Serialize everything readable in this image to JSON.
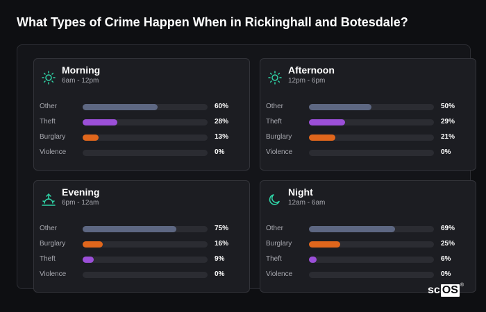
{
  "title": "What Types of Crime Happen When in Rickinghall and Botesdale?",
  "colors": {
    "accent_icon": "#2fd3a6",
    "other": "#5d6782",
    "theft": "#9b4fd8",
    "burglary": "#e0661c",
    "violence": "#2b2c32"
  },
  "cards": [
    {
      "name": "Morning",
      "range": "6am - 12pm",
      "icon": "sun-icon",
      "rows": [
        {
          "label": "Other",
          "value": 60,
          "pct": "60%",
          "color": "#5d6782"
        },
        {
          "label": "Theft",
          "value": 28,
          "pct": "28%",
          "color": "#9b4fd8"
        },
        {
          "label": "Burglary",
          "value": 13,
          "pct": "13%",
          "color": "#e0661c"
        },
        {
          "label": "Violence",
          "value": 0,
          "pct": "0%",
          "color": "#2b2c32"
        }
      ]
    },
    {
      "name": "Afternoon",
      "range": "12pm - 6pm",
      "icon": "sun-icon",
      "rows": [
        {
          "label": "Other",
          "value": 50,
          "pct": "50%",
          "color": "#5d6782"
        },
        {
          "label": "Theft",
          "value": 29,
          "pct": "29%",
          "color": "#9b4fd8"
        },
        {
          "label": "Burglary",
          "value": 21,
          "pct": "21%",
          "color": "#e0661c"
        },
        {
          "label": "Violence",
          "value": 0,
          "pct": "0%",
          "color": "#2b2c32"
        }
      ]
    },
    {
      "name": "Evening",
      "range": "6pm - 12am",
      "icon": "sunset-icon",
      "rows": [
        {
          "label": "Other",
          "value": 75,
          "pct": "75%",
          "color": "#5d6782"
        },
        {
          "label": "Burglary",
          "value": 16,
          "pct": "16%",
          "color": "#e0661c"
        },
        {
          "label": "Theft",
          "value": 9,
          "pct": "9%",
          "color": "#9b4fd8"
        },
        {
          "label": "Violence",
          "value": 0,
          "pct": "0%",
          "color": "#2b2c32"
        }
      ]
    },
    {
      "name": "Night",
      "range": "12am - 6am",
      "icon": "moon-icon",
      "rows": [
        {
          "label": "Other",
          "value": 69,
          "pct": "69%",
          "color": "#5d6782"
        },
        {
          "label": "Burglary",
          "value": 25,
          "pct": "25%",
          "color": "#e0661c"
        },
        {
          "label": "Theft",
          "value": 6,
          "pct": "6%",
          "color": "#9b4fd8"
        },
        {
          "label": "Violence",
          "value": 0,
          "pct": "0%",
          "color": "#2b2c32"
        }
      ]
    }
  ],
  "logo": {
    "text_left": "sc",
    "text_right": "OS",
    "mark": "®"
  }
}
